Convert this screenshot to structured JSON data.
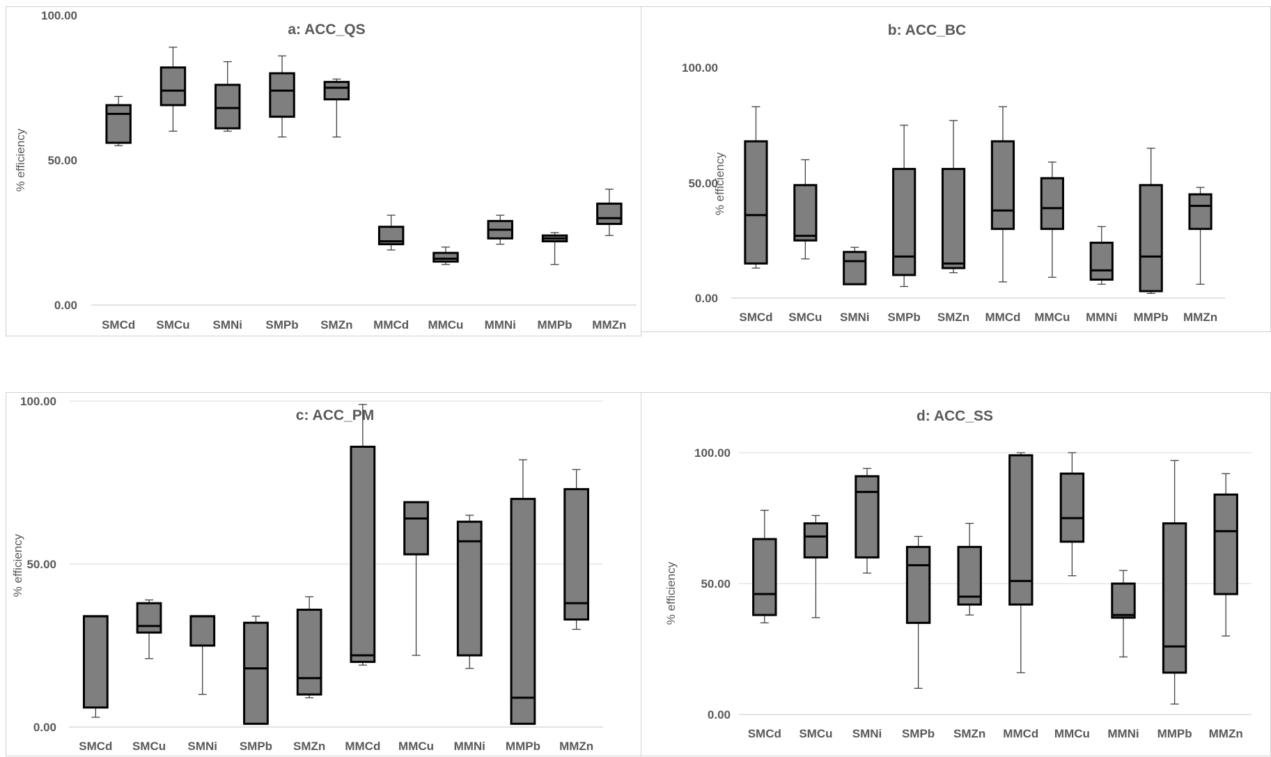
{
  "chart_data": [
    {
      "type": "boxplot",
      "title": "a: ACC_QS",
      "ylabel": "% efficiency",
      "ylim": [
        0,
        100
      ],
      "yticks": [
        "0.00",
        "50.00",
        "100.00"
      ],
      "grid": false,
      "categories": [
        "SMCd",
        "SMCu",
        "SMNi",
        "SMPb",
        "SMZn",
        "MMCd",
        "MMCu",
        "MMNi",
        "MMPb",
        "MMZn"
      ],
      "boxes": [
        {
          "min": 55,
          "q1": 56,
          "median": 66,
          "q3": 69,
          "max": 72
        },
        {
          "min": 60,
          "q1": 69,
          "median": 74,
          "q3": 82,
          "max": 89
        },
        {
          "min": 60,
          "q1": 61,
          "median": 68,
          "q3": 76,
          "max": 84
        },
        {
          "min": 58,
          "q1": 65,
          "median": 74,
          "q3": 80,
          "max": 86
        },
        {
          "min": 58,
          "q1": 71,
          "median": 75,
          "q3": 77,
          "max": 78
        },
        {
          "min": 19,
          "q1": 21,
          "median": 22,
          "q3": 27,
          "max": 31
        },
        {
          "min": 14,
          "q1": 15,
          "median": 16,
          "q3": 18,
          "max": 20
        },
        {
          "min": 21,
          "q1": 23,
          "median": 26,
          "q3": 29,
          "max": 31
        },
        {
          "min": 14,
          "q1": 22,
          "median": 23,
          "q3": 24,
          "max": 25
        },
        {
          "min": 24,
          "q1": 28,
          "median": 30,
          "q3": 35,
          "max": 40
        }
      ]
    },
    {
      "type": "boxplot",
      "title": "b: ACC_BC",
      "ylabel": "% efficiency",
      "ylim": [
        0,
        100
      ],
      "yticks": [
        "0.00",
        "50.00",
        "100.00"
      ],
      "grid": false,
      "categories": [
        "SMCd",
        "SMCu",
        "SMNi",
        "SMPb",
        "SMZn",
        "MMCd",
        "MMCu",
        "MMNi",
        "MMPb",
        "MMZn"
      ],
      "boxes": [
        {
          "min": 13,
          "q1": 15,
          "median": 36,
          "q3": 68,
          "max": 83
        },
        {
          "min": 17,
          "q1": 25,
          "median": 27,
          "q3": 49,
          "max": 60
        },
        {
          "min": 6,
          "q1": 6,
          "median": 16,
          "q3": 20,
          "max": 22
        },
        {
          "min": 5,
          "q1": 10,
          "median": 18,
          "q3": 56,
          "max": 75
        },
        {
          "min": 11,
          "q1": 13,
          "median": 15,
          "q3": 56,
          "max": 77
        },
        {
          "min": 7,
          "q1": 30,
          "median": 38,
          "q3": 68,
          "max": 83
        },
        {
          "min": 9,
          "q1": 30,
          "median": 39,
          "q3": 52,
          "max": 59
        },
        {
          "min": 6,
          "q1": 8,
          "median": 12,
          "q3": 24,
          "max": 31
        },
        {
          "min": 2,
          "q1": 3,
          "median": 18,
          "q3": 49,
          "max": 65
        },
        {
          "min": 6,
          "q1": 30,
          "median": 40,
          "q3": 45,
          "max": 48
        }
      ]
    },
    {
      "type": "boxplot",
      "title": "c: ACC_PM",
      "ylabel": "% efficiency",
      "ylim": [
        0,
        100
      ],
      "yticks": [
        "0.00",
        "50.00",
        "100.00"
      ],
      "grid": true,
      "categories": [
        "SMCd",
        "SMCu",
        "SMNi",
        "SMPb",
        "SMZn",
        "MMCd",
        "MMCu",
        "MMNi",
        "MMPb",
        "MMZn"
      ],
      "boxes": [
        {
          "min": 3,
          "q1": 6,
          "median": 34,
          "q3": 34,
          "max": 34
        },
        {
          "min": 21,
          "q1": 29,
          "median": 31,
          "q3": 38,
          "max": 39
        },
        {
          "min": 10,
          "q1": 25,
          "median": 34,
          "q3": 34,
          "max": 34
        },
        {
          "min": 1,
          "q1": 1,
          "median": 18,
          "q3": 32,
          "max": 34
        },
        {
          "min": 9,
          "q1": 10,
          "median": 15,
          "q3": 36,
          "max": 40
        },
        {
          "min": 19,
          "q1": 20,
          "median": 22,
          "q3": 86,
          "max": 99
        },
        {
          "min": 22,
          "q1": 53,
          "median": 64,
          "q3": 69,
          "max": 69
        },
        {
          "min": 18,
          "q1": 22,
          "median": 57,
          "q3": 63,
          "max": 65
        },
        {
          "min": 1,
          "q1": 1,
          "median": 9,
          "q3": 70,
          "max": 82
        },
        {
          "min": 30,
          "q1": 33,
          "median": 38,
          "q3": 73,
          "max": 79
        }
      ]
    },
    {
      "type": "boxplot",
      "title": "d: ACC_SS",
      "ylabel": "% efficiency",
      "ylim": [
        0,
        100
      ],
      "yticks": [
        "0.00",
        "50.00",
        "100.00"
      ],
      "grid": true,
      "categories": [
        "SMCd",
        "SMCu",
        "SMNi",
        "SMPb",
        "SMZn",
        "MMCd",
        "MMCu",
        "MMNi",
        "MMPb",
        "MMZn"
      ],
      "boxes": [
        {
          "min": 35,
          "q1": 38,
          "median": 46,
          "q3": 67,
          "max": 78
        },
        {
          "min": 37,
          "q1": 60,
          "median": 68,
          "q3": 73,
          "max": 76
        },
        {
          "min": 54,
          "q1": 60,
          "median": 85,
          "q3": 91,
          "max": 94
        },
        {
          "min": 10,
          "q1": 35,
          "median": 57,
          "q3": 64,
          "max": 68
        },
        {
          "min": 38,
          "q1": 42,
          "median": 45,
          "q3": 64,
          "max": 73
        },
        {
          "min": 16,
          "q1": 42,
          "median": 51,
          "q3": 99,
          "max": 100
        },
        {
          "min": 53,
          "q1": 66,
          "median": 75,
          "q3": 92,
          "max": 100
        },
        {
          "min": 22,
          "q1": 37,
          "median": 38,
          "q3": 50,
          "max": 55
        },
        {
          "min": 4,
          "q1": 16,
          "median": 26,
          "q3": 73,
          "max": 97
        },
        {
          "min": 30,
          "q1": 46,
          "median": 70,
          "q3": 84,
          "max": 92
        }
      ]
    }
  ]
}
